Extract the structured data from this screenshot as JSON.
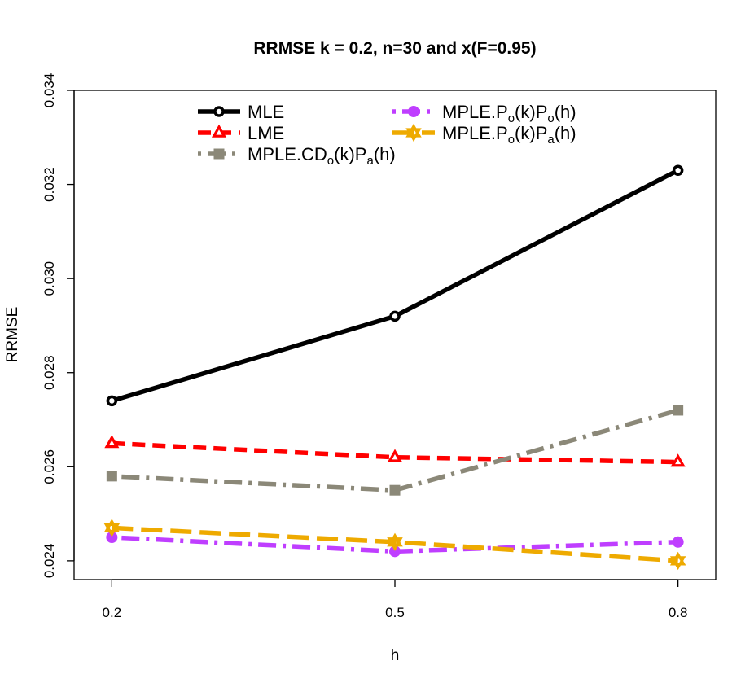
{
  "chart_data": {
    "type": "line",
    "title": "RRMSE k = 0.2, n=30 and x(F=0.95)",
    "xlabel": "h",
    "ylabel": "RRMSE",
    "x": [
      0.2,
      0.5,
      0.8
    ],
    "x_tick_labels": [
      "0.2",
      "0.5",
      "0.8"
    ],
    "ylim": [
      0.0236,
      0.034
    ],
    "y_ticks": [
      0.024,
      0.026,
      0.028,
      0.03,
      0.032,
      0.034
    ],
    "y_tick_labels": [
      "0.024",
      "0.026",
      "0.028",
      "0.030",
      "0.032",
      "0.034"
    ],
    "legend_placement": "top",
    "series": [
      {
        "name": "MLE",
        "legend": {
          "base": "MLE",
          "parts": []
        },
        "values": [
          0.0274,
          0.0292,
          0.0323
        ],
        "color": "#000000",
        "marker": "circle-open",
        "line_style": "solid"
      },
      {
        "name": "LME",
        "legend": {
          "base": "LME",
          "parts": []
        },
        "values": [
          0.0265,
          0.0262,
          0.0261
        ],
        "color": "#ff0000",
        "marker": "triangle-open",
        "line_style": "dashed"
      },
      {
        "name": "MPLE.CDo(k)Pa(h)",
        "legend": {
          "base": "MPLE.CD",
          "parts": [
            [
              "o",
              "(k)P"
            ],
            [
              "a",
              "(h)"
            ]
          ]
        },
        "values": [
          0.0258,
          0.0255,
          0.0272
        ],
        "color": "#8b8878",
        "marker": "square",
        "line_style": "dashdot"
      },
      {
        "name": "MPLE.Po(k)Po(h)",
        "legend": {
          "base": "MPLE.P",
          "parts": [
            [
              "o",
              "(k)P"
            ],
            [
              "o",
              "(h)"
            ]
          ]
        },
        "values": [
          0.0245,
          0.0242,
          0.0244
        ],
        "color": "#bf3eff",
        "marker": "circle-filled",
        "line_style": "dashdot"
      },
      {
        "name": "MPLE.Po(k)Pa(h)",
        "legend": {
          "base": "MPLE.P",
          "parts": [
            [
              "o",
              "(k)P"
            ],
            [
              "a",
              "(h)"
            ]
          ]
        },
        "values": [
          0.0247,
          0.0244,
          0.024
        ],
        "color": "#eeaa00",
        "marker": "star",
        "line_style": "longdash"
      }
    ]
  }
}
